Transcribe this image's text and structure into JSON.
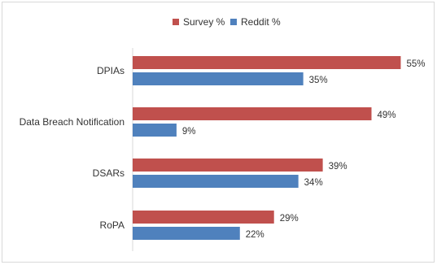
{
  "chart_data": {
    "type": "bar",
    "orientation": "horizontal",
    "categories": [
      "DPIAs",
      "Data Breach Notification",
      "DSARs",
      "RoPA"
    ],
    "series": [
      {
        "name": "Survey %",
        "values": [
          55,
          49,
          39,
          29
        ],
        "labels": [
          "55%",
          "49%",
          "39%",
          "29%"
        ],
        "color": "#c0504d"
      },
      {
        "name": "Reddit %",
        "values": [
          35,
          9,
          34,
          22
        ],
        "labels": [
          "35%",
          "9%",
          "34%",
          "22%"
        ],
        "color": "#4f81bd"
      }
    ],
    "xlim": [
      0,
      60
    ],
    "grid": false,
    "legend_position": "top"
  }
}
